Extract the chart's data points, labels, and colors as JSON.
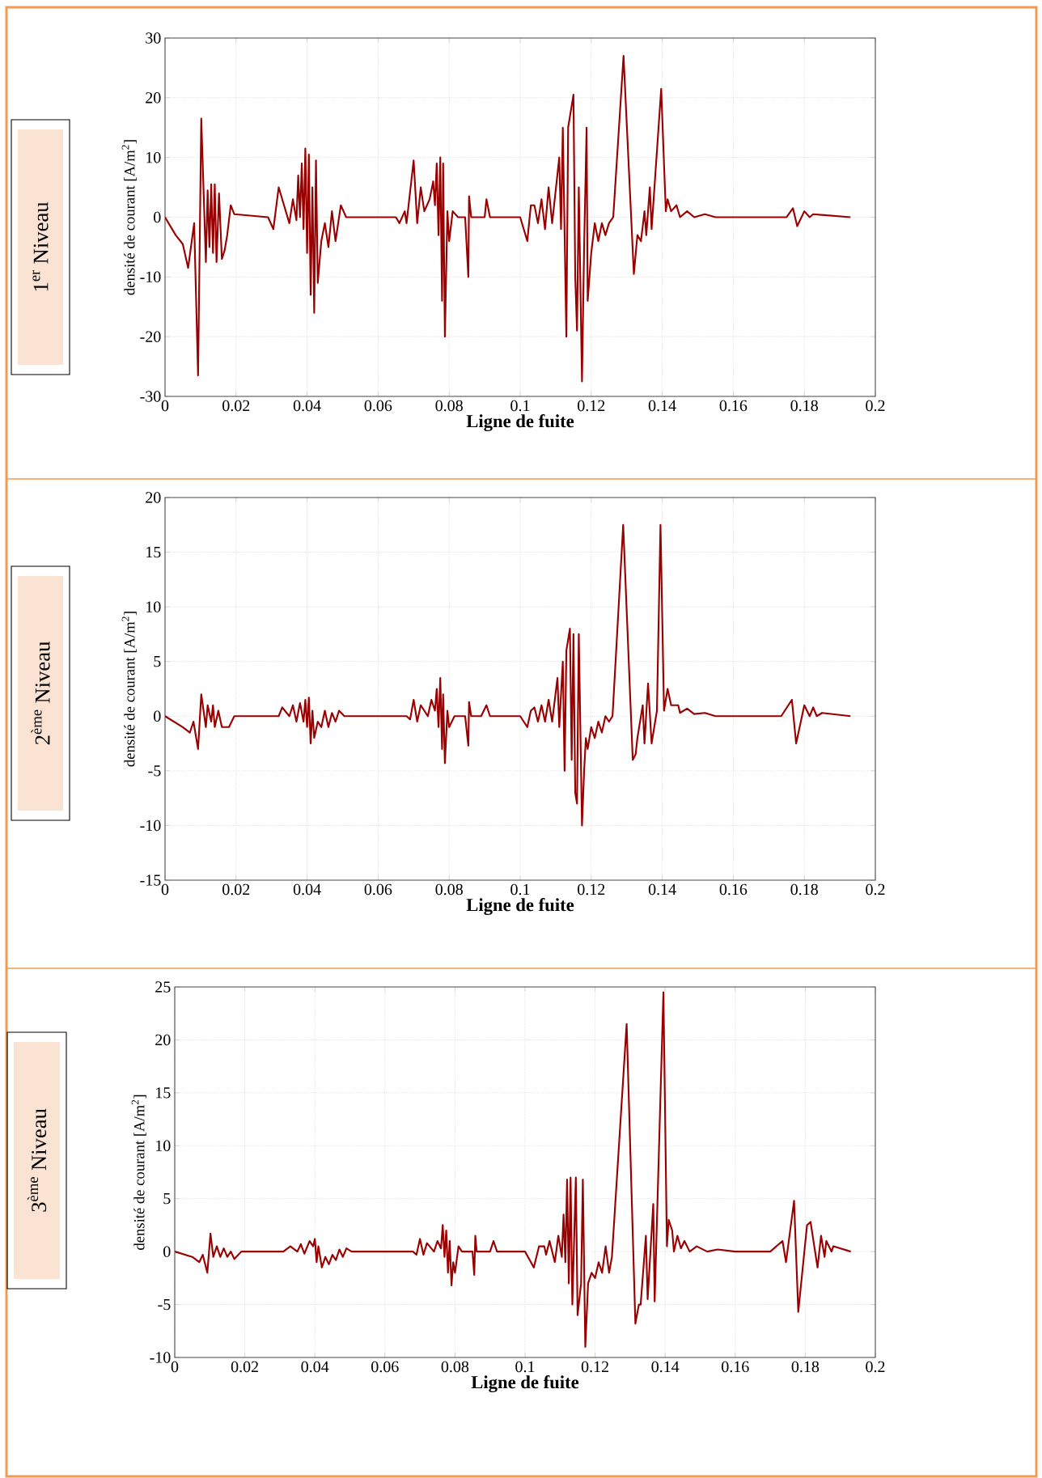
{
  "chart_data": [
    {
      "type": "line",
      "title": "1$^{er}$ Niveau",
      "xlabel": "Ligne de fuite",
      "ylabel": "densité de courant [A/m$^{2}$]",
      "color": "#990000",
      "line_style": "solid",
      "grid": true,
      "xlim": [
        0,
        0.2
      ],
      "ylim": [
        -30,
        30
      ],
      "xticks": [
        0,
        0.02,
        0.04,
        0.06,
        0.08,
        0.1,
        0.12,
        0.14,
        0.16,
        0.18,
        0.2
      ],
      "yticks": [
        -30,
        -20,
        -10,
        0,
        10,
        20,
        30
      ],
      "x": [
        0,
        0.003,
        0.005,
        0.0065,
        0.0082,
        0.0093,
        0.0102,
        0.0115,
        0.012,
        0.0125,
        0.013,
        0.0135,
        0.014,
        0.0145,
        0.0152,
        0.016,
        0.0168,
        0.0175,
        0.0185,
        0.0195,
        0.029,
        0.0305,
        0.032,
        0.0335,
        0.035,
        0.036,
        0.037,
        0.0375,
        0.038,
        0.0385,
        0.039,
        0.0395,
        0.04,
        0.0405,
        0.041,
        0.0415,
        0.042,
        0.0425,
        0.043,
        0.044,
        0.045,
        0.046,
        0.047,
        0.048,
        0.0495,
        0.051,
        0.065,
        0.066,
        0.0675,
        0.068,
        0.07,
        0.071,
        0.072,
        0.073,
        0.0745,
        0.0755,
        0.076,
        0.0765,
        0.077,
        0.0775,
        0.078,
        0.0783,
        0.0788,
        0.0795,
        0.08,
        0.081,
        0.0825,
        0.0845,
        0.0854,
        0.0856,
        0.0862,
        0.09,
        0.0905,
        0.0915,
        0.1,
        0.102,
        0.103,
        0.104,
        0.105,
        0.106,
        0.107,
        0.108,
        0.109,
        0.111,
        0.1115,
        0.112,
        0.113,
        0.1135,
        0.115,
        0.1155,
        0.116,
        0.1165,
        0.1174,
        0.118,
        0.1187,
        0.119,
        0.12,
        0.121,
        0.122,
        0.123,
        0.124,
        0.125,
        0.1262,
        0.1291,
        0.132,
        0.133,
        0.134,
        0.135,
        0.1355,
        0.1365,
        0.137,
        0.1397,
        0.141,
        0.1415,
        0.1425,
        0.144,
        0.145,
        0.147,
        0.149,
        0.152,
        0.155,
        0.175,
        0.1768,
        0.178,
        0.18,
        0.1815,
        0.1825,
        0.193
      ],
      "values": [
        0,
        -3,
        -4.5,
        -8.5,
        -1,
        -26.5,
        16.5,
        -7.5,
        4.5,
        -5,
        5.5,
        -6,
        5.5,
        -7.5,
        4,
        -7,
        -5.5,
        -3,
        2,
        0.5,
        0,
        -2,
        5,
        2,
        -1,
        3,
        -0.5,
        7,
        0,
        9,
        -2,
        11.5,
        -6,
        10.5,
        -13,
        5,
        -16,
        9.5,
        -11,
        -4,
        -1,
        -5,
        1,
        -4,
        2,
        0,
        0,
        -1,
        1,
        -1,
        9.5,
        -1,
        5,
        1,
        3,
        6,
        2,
        9,
        -3,
        10,
        -14,
        9,
        -20,
        1,
        -4,
        1,
        0,
        0,
        -10,
        3.5,
        0,
        0,
        3,
        0,
        0,
        -4,
        2,
        2,
        -1,
        3,
        -2,
        5,
        -1,
        10,
        -2,
        15,
        -20,
        15,
        20.5,
        -10,
        -19,
        5,
        -27.5,
        -5,
        15,
        -14,
        -6,
        -1,
        -4,
        -1,
        -3,
        -1,
        0,
        27,
        -9.5,
        -3,
        -4,
        1,
        -3,
        5,
        -2,
        21.5,
        1,
        3,
        1,
        2,
        0,
        1,
        0,
        0.5,
        0,
        0,
        1.5,
        -1.5,
        1,
        0,
        0.5,
        0
      ]
    },
    {
      "type": "line",
      "title": "2$^{ème}$ Niveau",
      "xlabel": "Ligne de fuite",
      "ylabel": "densité de courant [A/m$^{2}$]",
      "color": "#990000",
      "line_style": "solid",
      "grid": true,
      "xlim": [
        0,
        0.2
      ],
      "ylim": [
        -15,
        20
      ],
      "xticks": [
        0,
        0.02,
        0.04,
        0.06,
        0.08,
        0.1,
        0.12,
        0.14,
        0.16,
        0.18,
        0.2
      ],
      "yticks": [
        -15,
        -10,
        -5,
        0,
        5,
        10,
        15,
        20
      ],
      "x": [
        0,
        0.005,
        0.007,
        0.008,
        0.0093,
        0.0102,
        0.0115,
        0.012,
        0.013,
        0.0135,
        0.014,
        0.015,
        0.016,
        0.018,
        0.0195,
        0.032,
        0.033,
        0.035,
        0.036,
        0.037,
        0.038,
        0.039,
        0.0395,
        0.04,
        0.0405,
        0.041,
        0.0415,
        0.042,
        0.043,
        0.044,
        0.045,
        0.046,
        0.047,
        0.048,
        0.049,
        0.0505,
        0.068,
        0.069,
        0.07,
        0.071,
        0.072,
        0.074,
        0.075,
        0.076,
        0.0765,
        0.077,
        0.0775,
        0.078,
        0.0783,
        0.0788,
        0.0795,
        0.08,
        0.0815,
        0.0845,
        0.0854,
        0.0856,
        0.0862,
        0.089,
        0.0905,
        0.0915,
        0.1,
        0.102,
        0.103,
        0.104,
        0.105,
        0.106,
        0.107,
        0.108,
        0.109,
        0.1105,
        0.111,
        0.112,
        0.1125,
        0.113,
        0.114,
        0.1145,
        0.115,
        0.1155,
        0.116,
        0.1165,
        0.1174,
        0.118,
        0.1185,
        0.119,
        0.12,
        0.121,
        0.122,
        0.123,
        0.124,
        0.125,
        0.126,
        0.129,
        0.1317,
        0.1325,
        0.133,
        0.1345,
        0.135,
        0.136,
        0.137,
        0.1385,
        0.1395,
        0.1405,
        0.1415,
        0.1425,
        0.1445,
        0.145,
        0.147,
        0.149,
        0.152,
        0.155,
        0.1735,
        0.1765,
        0.1777,
        0.18,
        0.1815,
        0.1825,
        0.1835,
        0.185,
        0.193
      ],
      "values": [
        0,
        -1,
        -1.5,
        -0.5,
        -3,
        2,
        -1,
        1,
        -0.5,
        1,
        -1,
        0.5,
        -1,
        -1,
        0,
        0,
        0.8,
        0,
        1,
        -0.5,
        1.2,
        -0.5,
        1.5,
        -1,
        1.7,
        -2.5,
        0.5,
        -2,
        -0.5,
        -1,
        0.5,
        -1,
        0.3,
        -0.5,
        0.5,
        0,
        0,
        -0.3,
        1.5,
        -0.5,
        1,
        0,
        1.5,
        0.5,
        2.5,
        -1,
        3.5,
        -3,
        2,
        -4.3,
        0.5,
        -1,
        0,
        0,
        -2.7,
        1.3,
        0,
        0,
        1,
        0,
        0,
        -1,
        0.5,
        0.8,
        -0.5,
        1,
        -0.5,
        1.5,
        -0.5,
        3.5,
        -1,
        5,
        -5,
        6,
        8,
        -4,
        7.5,
        -7,
        -8,
        7.5,
        -10,
        -5,
        -2,
        -3,
        -1,
        -2,
        -0.5,
        -1.5,
        0,
        -0.5,
        0,
        17.5,
        -4,
        -3.5,
        -2,
        1,
        -2.5,
        3,
        -2.5,
        0.5,
        17.5,
        0.5,
        2.5,
        1,
        1,
        0.3,
        0.7,
        0.2,
        0.3,
        0,
        0,
        1.5,
        -2.5,
        1,
        0,
        0.8,
        0,
        0.3,
        0
      ]
    },
    {
      "type": "line",
      "title": "3$^{ème}$ Niveau",
      "xlabel": "Ligne de fuite",
      "ylabel": "densité de courant [A/m$^{2}$]",
      "color": "#990000",
      "line_style": "solid",
      "grid": true,
      "xlim": [
        0,
        0.2
      ],
      "ylim": [
        -10,
        25
      ],
      "xticks": [
        0,
        0.02,
        0.04,
        0.06,
        0.08,
        0.1,
        0.12,
        0.14,
        0.16,
        0.18,
        0.2
      ],
      "yticks": [
        -10,
        -5,
        0,
        5,
        10,
        15,
        20,
        25
      ],
      "x": [
        0,
        0.005,
        0.007,
        0.008,
        0.0093,
        0.0102,
        0.011,
        0.012,
        0.013,
        0.014,
        0.015,
        0.016,
        0.017,
        0.019,
        0.031,
        0.033,
        0.035,
        0.036,
        0.037,
        0.0385,
        0.0395,
        0.04,
        0.0405,
        0.041,
        0.042,
        0.043,
        0.044,
        0.045,
        0.046,
        0.047,
        0.048,
        0.049,
        0.0505,
        0.068,
        0.069,
        0.07,
        0.071,
        0.072,
        0.074,
        0.075,
        0.076,
        0.0765,
        0.077,
        0.0775,
        0.078,
        0.0785,
        0.079,
        0.0795,
        0.08,
        0.081,
        0.082,
        0.085,
        0.0855,
        0.0858,
        0.0862,
        0.09,
        0.091,
        0.092,
        0.1,
        0.1025,
        0.104,
        0.1055,
        0.106,
        0.107,
        0.1085,
        0.1095,
        0.1105,
        0.111,
        0.1115,
        0.112,
        0.1125,
        0.113,
        0.1135,
        0.1145,
        0.115,
        0.116,
        0.1165,
        0.1172,
        0.118,
        0.119,
        0.12,
        0.121,
        0.122,
        0.123,
        0.124,
        0.1248,
        0.129,
        0.1315,
        0.1325,
        0.133,
        0.1345,
        0.135,
        0.1366,
        0.137,
        0.1395,
        0.1405,
        0.141,
        0.142,
        0.1425,
        0.1435,
        0.1445,
        0.1455,
        0.147,
        0.149,
        0.152,
        0.155,
        0.16,
        0.17,
        0.1735,
        0.1745,
        0.1768,
        0.178,
        0.1805,
        0.1815,
        0.1835,
        0.1845,
        0.1855,
        0.186,
        0.1875,
        0.188,
        0.193
      ],
      "values": [
        0,
        -0.5,
        -1,
        -0.3,
        -2,
        1.7,
        -0.5,
        0.5,
        -0.5,
        0.3,
        -0.5,
        0,
        -0.7,
        0,
        0,
        0.5,
        0,
        0.7,
        -0.2,
        1,
        0.5,
        1.2,
        -1,
        0.5,
        -1.5,
        -0.5,
        -1.2,
        -0.3,
        -0.8,
        0.2,
        -0.5,
        0.3,
        0,
        0,
        -0.3,
        1.2,
        -0.3,
        0.8,
        0,
        1,
        0.3,
        2.5,
        -0.5,
        2,
        -2,
        1,
        -3.2,
        -1,
        -2,
        0.5,
        0,
        0,
        -2.2,
        1.5,
        0,
        0,
        1,
        0,
        0,
        -1.5,
        0.5,
        0.5,
        -0.3,
        1,
        -1,
        1.5,
        -0.5,
        3.5,
        -1,
        6.8,
        -3,
        7,
        -5,
        7,
        -6,
        -3,
        6.8,
        -9,
        -3,
        -2,
        -2.5,
        -1,
        -2,
        0.5,
        -2,
        -0.5,
        21.5,
        -6.8,
        -5,
        -5,
        1.5,
        -4.5,
        4.5,
        -4.7,
        24.5,
        0.5,
        3,
        2,
        0,
        1.5,
        0.3,
        1,
        0,
        0.5,
        0,
        0.2,
        0,
        0,
        1,
        -1,
        4.8,
        -5.7,
        2.5,
        2.8,
        -1.5,
        1.5,
        -0.5,
        1,
        0,
        0.5,
        0
      ]
    }
  ]
}
